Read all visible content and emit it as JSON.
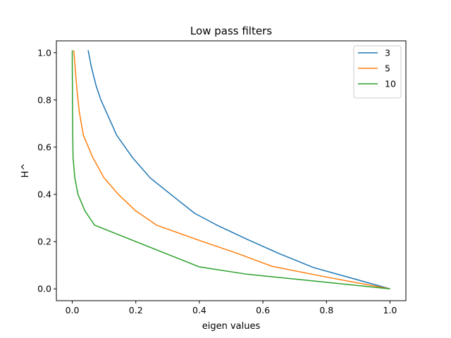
{
  "chart_data": {
    "type": "line",
    "title": "Low pass filters",
    "xlabel": "eigen values",
    "ylabel": "H^",
    "xlim": [
      -0.05,
      1.05
    ],
    "ylim": [
      -0.05,
      1.05
    ],
    "xticks": [
      "0.0",
      "0.2",
      "0.4",
      "0.6",
      "0.8",
      "1.0"
    ],
    "yticks": [
      "0.0",
      "0.2",
      "0.4",
      "0.6",
      "0.8",
      "1.0"
    ],
    "grid": false,
    "legend": "top-right",
    "series": [
      {
        "name": "3",
        "color": "#1f77b4",
        "points": [
          [
            0.05,
            1.01
          ],
          [
            0.06,
            0.94
          ],
          [
            0.075,
            0.86
          ],
          [
            0.09,
            0.8
          ],
          [
            0.11,
            0.74
          ],
          [
            0.14,
            0.65
          ],
          [
            0.19,
            0.555
          ],
          [
            0.245,
            0.47
          ],
          [
            0.31,
            0.4
          ],
          [
            0.385,
            0.32
          ],
          [
            0.455,
            0.27
          ],
          [
            0.55,
            0.21
          ],
          [
            0.65,
            0.15
          ],
          [
            0.76,
            0.09
          ],
          [
            0.88,
            0.045
          ],
          [
            1.0,
            0.0
          ]
        ]
      },
      {
        "name": "5",
        "color": "#ff7f0e",
        "points": [
          [
            0.005,
            1.01
          ],
          [
            0.01,
            0.92
          ],
          [
            0.015,
            0.84
          ],
          [
            0.022,
            0.75
          ],
          [
            0.035,
            0.65
          ],
          [
            0.065,
            0.555
          ],
          [
            0.1,
            0.47
          ],
          [
            0.145,
            0.4
          ],
          [
            0.2,
            0.33
          ],
          [
            0.265,
            0.27
          ],
          [
            0.4,
            0.205
          ],
          [
            0.52,
            0.15
          ],
          [
            0.63,
            0.095
          ],
          [
            0.8,
            0.05
          ],
          [
            1.0,
            0.0
          ]
        ]
      },
      {
        "name": "10",
        "color": "#2ca02c",
        "points": [
          [
            0.0,
            1.01
          ],
          [
            0.0,
            0.95
          ],
          [
            0.0005,
            0.85
          ],
          [
            0.001,
            0.75
          ],
          [
            0.0015,
            0.65
          ],
          [
            0.0025,
            0.555
          ],
          [
            0.008,
            0.47
          ],
          [
            0.018,
            0.4
          ],
          [
            0.04,
            0.33
          ],
          [
            0.07,
            0.27
          ],
          [
            0.4,
            0.093
          ],
          [
            0.55,
            0.062
          ],
          [
            0.8,
            0.028
          ],
          [
            1.0,
            0.0
          ]
        ]
      }
    ]
  }
}
